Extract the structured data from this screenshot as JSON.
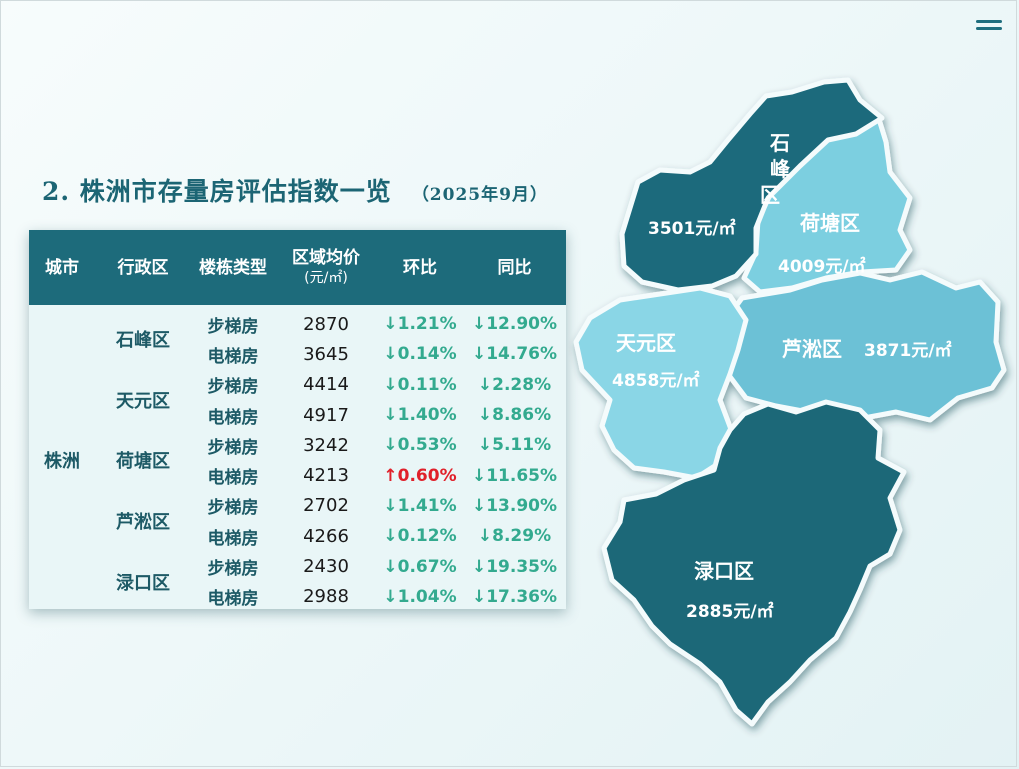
{
  "title": "2. 株洲市存量房评估指数一览",
  "subtitle": "（2025年9月）",
  "table": {
    "headers": [
      "城市",
      "行政区",
      "楼栋类型",
      "区域均价",
      "环比",
      "同比"
    ],
    "price_unit": "(元/㎡)",
    "city": "株洲",
    "districts": [
      {
        "name": "石峰区",
        "rows": [
          {
            "type": "步梯房",
            "price": "2870",
            "mom": "↓1.21%",
            "mom_dir": "down",
            "yoy": "↓12.90%"
          },
          {
            "type": "电梯房",
            "price": "3645",
            "mom": "↓0.14%",
            "mom_dir": "down",
            "yoy": "↓14.76%"
          }
        ]
      },
      {
        "name": "天元区",
        "rows": [
          {
            "type": "步梯房",
            "price": "4414",
            "mom": "↓0.11%",
            "mom_dir": "down",
            "yoy": "↓2.28%"
          },
          {
            "type": "电梯房",
            "price": "4917",
            "mom": "↓1.40%",
            "mom_dir": "down",
            "yoy": "↓8.86%"
          }
        ]
      },
      {
        "name": "荷塘区",
        "rows": [
          {
            "type": "步梯房",
            "price": "3242",
            "mom": "↓0.53%",
            "mom_dir": "down",
            "yoy": "↓5.11%"
          },
          {
            "type": "电梯房",
            "price": "4213",
            "mom": "↑0.60%",
            "mom_dir": "up",
            "yoy": "↓11.65%"
          }
        ]
      },
      {
        "name": "芦淞区",
        "rows": [
          {
            "type": "步梯房",
            "price": "2702",
            "mom": "↓1.41%",
            "mom_dir": "down",
            "yoy": "↓13.90%"
          },
          {
            "type": "电梯房",
            "price": "4266",
            "mom": "↓0.12%",
            "mom_dir": "down",
            "yoy": "↓8.29%"
          }
        ]
      },
      {
        "name": "渌口区",
        "rows": [
          {
            "type": "步梯房",
            "price": "2430",
            "mom": "↓0.67%",
            "mom_dir": "down",
            "yoy": "↓19.35%"
          },
          {
            "type": "电梯房",
            "price": "2988",
            "mom": "↓1.04%",
            "mom_dir": "down",
            "yoy": "↓17.36%"
          }
        ]
      }
    ]
  },
  "map": {
    "regions": {
      "shifeng": {
        "name_lines": [
          "石",
          "峰",
          "区"
        ],
        "price": "3501元/㎡",
        "color": "#1b6b7c"
      },
      "hetang": {
        "name": "荷塘区",
        "price": "4009元/㎡",
        "color": "#7ccfe0"
      },
      "tianyuan": {
        "name": "天元区",
        "price": "4858元/㎡",
        "color": "#8ad6e6"
      },
      "lusong": {
        "name": "芦淞区",
        "price": "3871元/㎡",
        "color": "#6cc1d6"
      },
      "lukou": {
        "name": "渌口区",
        "price": "2885元/㎡",
        "color": "#1a6878"
      }
    }
  },
  "colors": {
    "header_bg": "#1d6b7b",
    "title": "#1c6574",
    "down": "#33aa8f",
    "up": "#e0202a"
  },
  "icons": {
    "menu": "hamburger-menu-icon"
  }
}
